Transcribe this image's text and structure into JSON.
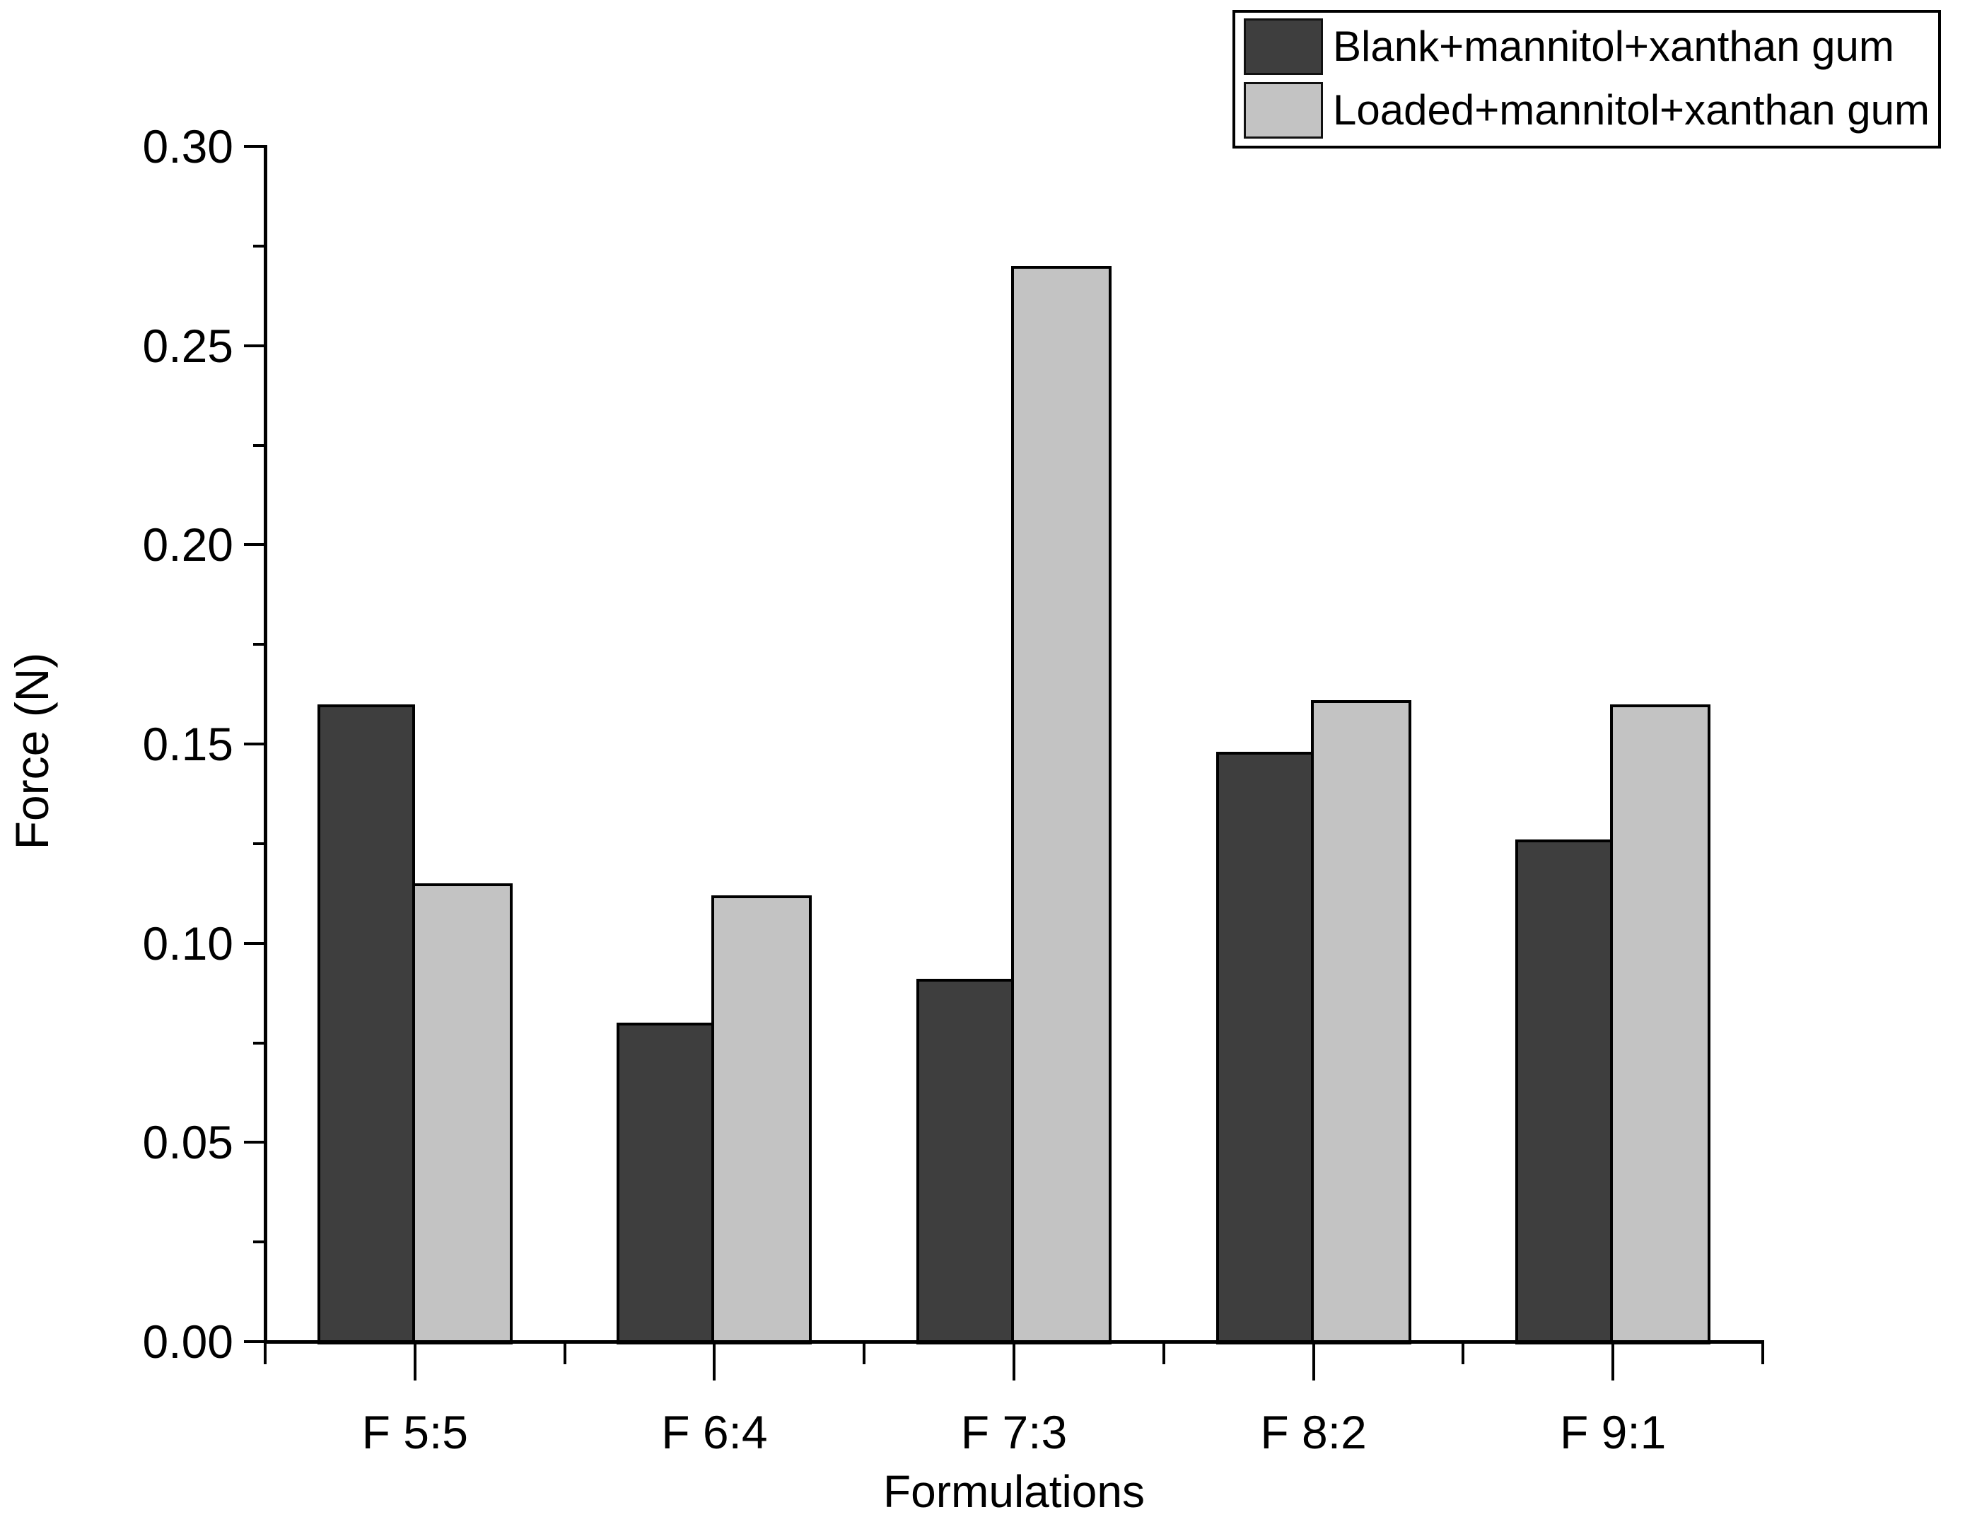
{
  "chart_data": {
    "type": "bar",
    "title": "",
    "categories": [
      "F 5:5",
      "F 6:4",
      "F 7:3",
      "F 8:2",
      "F 9:1"
    ],
    "series": [
      {
        "name": "Blank+mannitol+xanthan gum",
        "color": "#3E3E3E",
        "values": [
          0.16,
          0.08,
          0.091,
          0.148,
          0.126
        ]
      },
      {
        "name": "Loaded+mannitol+xanthan gum",
        "color": "#C3C3C3",
        "values": [
          0.115,
          0.112,
          0.27,
          0.161,
          0.16
        ]
      }
    ],
    "xlabel": "Formulations",
    "ylabel": "Force (N)",
    "ylim": [
      0.0,
      0.3
    ],
    "ytick_step": 0.05,
    "yminor_step": 0.025,
    "ytick_labels": [
      "0.00",
      "0.05",
      "0.10",
      "0.15",
      "0.20",
      "0.25",
      "0.30"
    ],
    "legend_position": "top-right",
    "grid": false,
    "axis_color": "#000000",
    "background_color": "#FFFFFF"
  }
}
